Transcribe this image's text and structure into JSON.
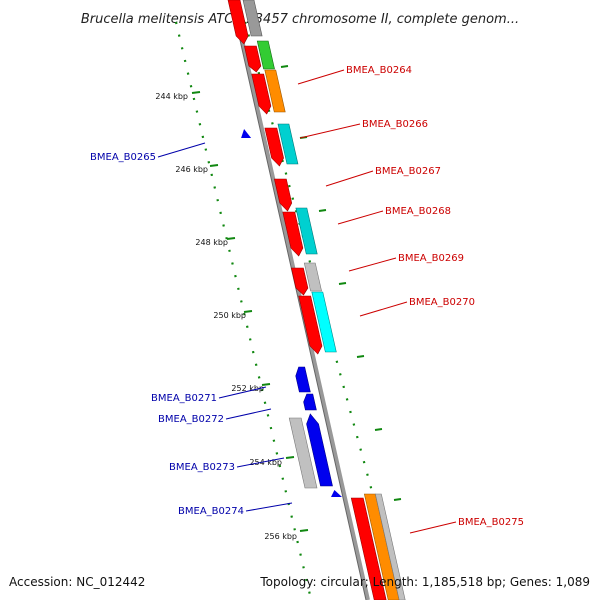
{
  "title": "Brucella melitensis ATCC 23457 chromosome II, complete genom...",
  "footer": {
    "accession": "Accession: NC_012442",
    "summary": "Topology: circular; Length: 1,185,518 bp; Genes: 1,089"
  },
  "colors": {
    "forward_label": "#cc0000",
    "reverse_label": "#0000aa",
    "tick": "#118811",
    "backbone": "#888888",
    "red": "#ff0000",
    "orange": "#ff8c00",
    "cyan": "#00d0d0",
    "green": "#33cc33",
    "grey": "#c0c0c0",
    "dark_grey": "#888888",
    "blue": "#0000ee"
  },
  "ticks": [
    {
      "label": "244 kbp",
      "kbp": 244
    },
    {
      "label": "246 kbp",
      "kbp": 246
    },
    {
      "label": "248 kbp",
      "kbp": 248
    },
    {
      "label": "250 kbp",
      "kbp": 250
    },
    {
      "label": "252 kbp",
      "kbp": 252
    },
    {
      "label": "254 kbp",
      "kbp": 254
    },
    {
      "label": "256 kbp",
      "kbp": 256
    }
  ],
  "gene_labels": [
    {
      "name": "BMEA_B0264",
      "strand": "forward"
    },
    {
      "name": "BMEA_B0265",
      "strand": "reverse"
    },
    {
      "name": "BMEA_B0266",
      "strand": "forward"
    },
    {
      "name": "BMEA_B0267",
      "strand": "forward"
    },
    {
      "name": "BMEA_B0268",
      "strand": "forward"
    },
    {
      "name": "BMEA_B0269",
      "strand": "forward"
    },
    {
      "name": "BMEA_B0270",
      "strand": "forward"
    },
    {
      "name": "BMEA_B0271",
      "strand": "reverse"
    },
    {
      "name": "BMEA_B0272",
      "strand": "reverse"
    },
    {
      "name": "BMEA_B0273",
      "strand": "reverse"
    },
    {
      "name": "BMEA_B0274",
      "strand": "reverse"
    },
    {
      "name": "BMEA_B0275",
      "strand": "forward"
    }
  ]
}
